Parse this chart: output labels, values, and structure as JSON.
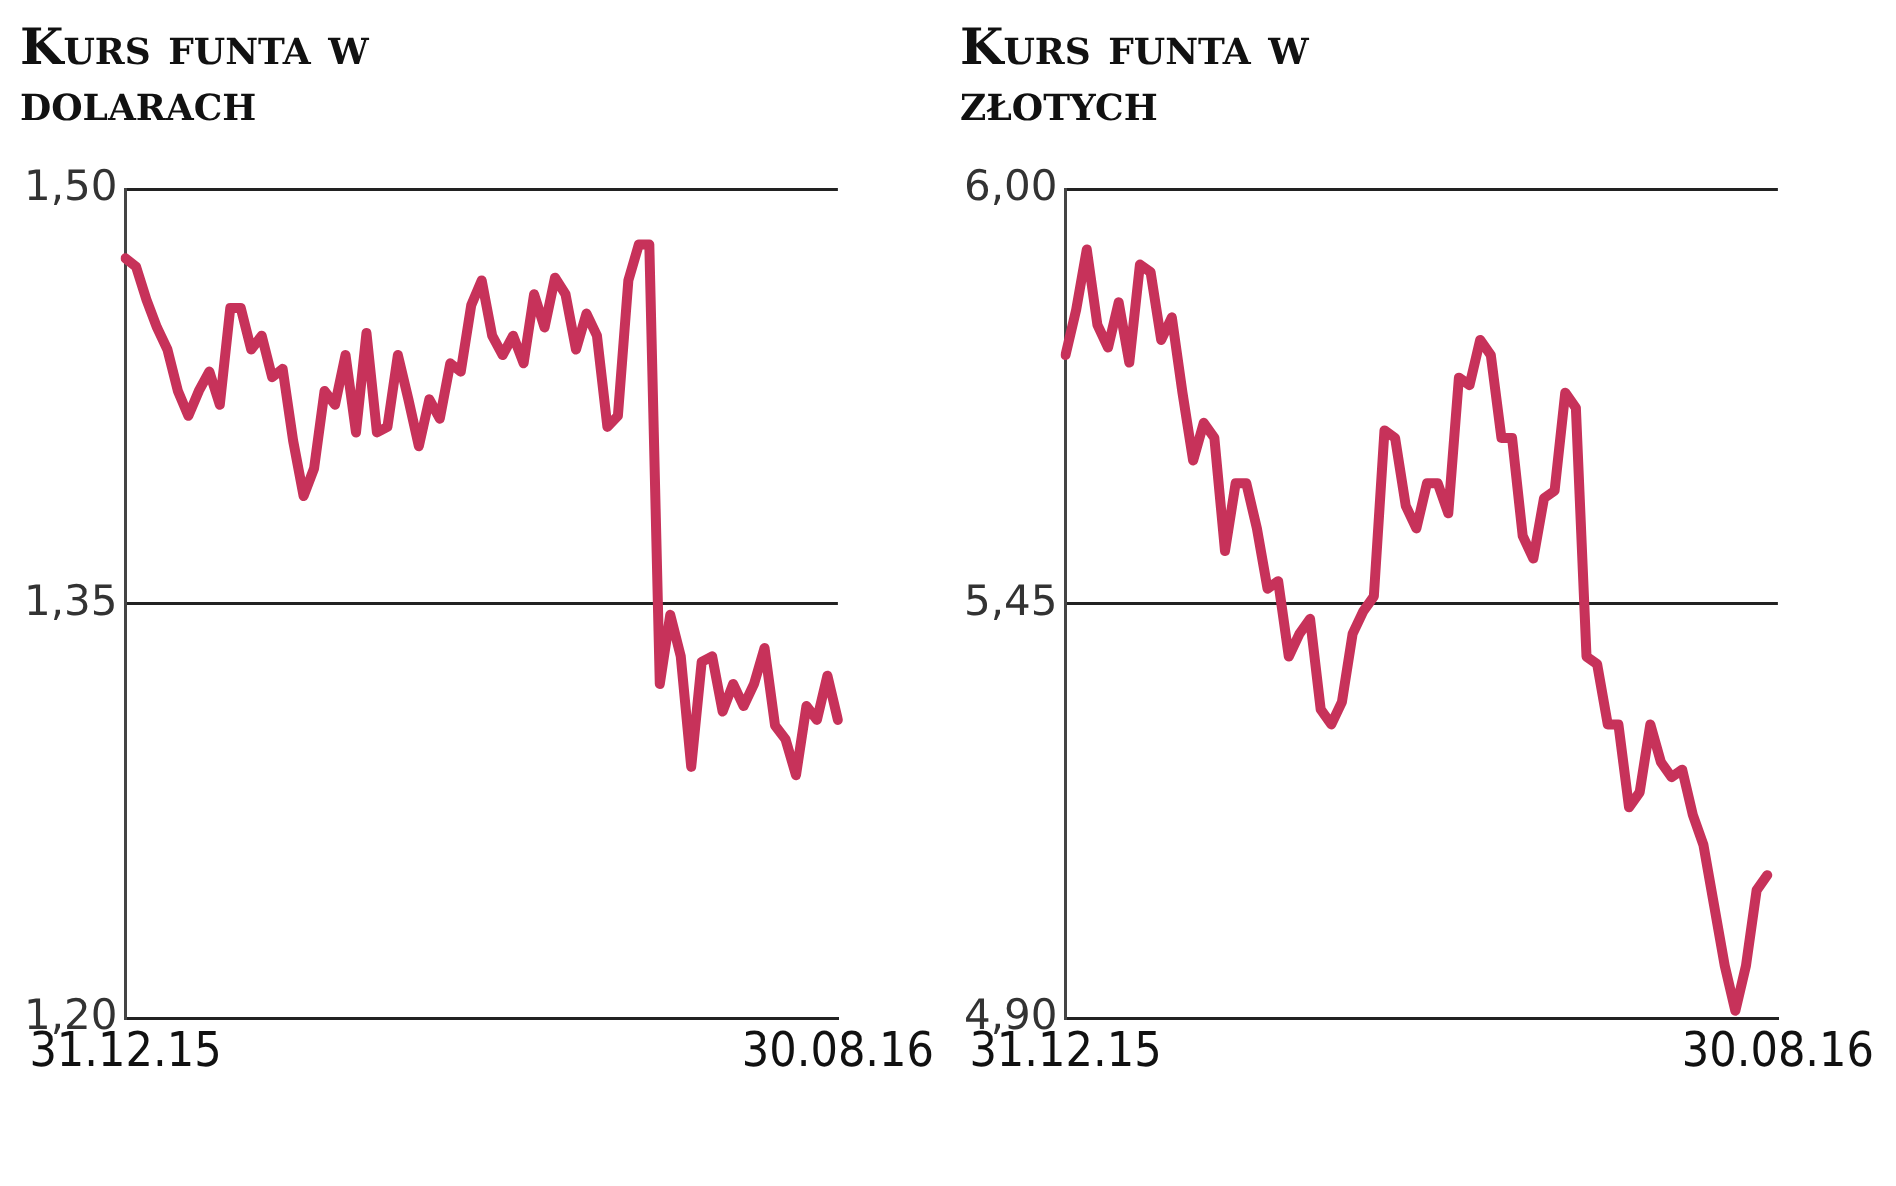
{
  "chart_data": [
    {
      "type": "line",
      "title": "Kurs funta w dolarach",
      "ylim": [
        1.2,
        1.5
      ],
      "yticks": [
        {
          "value": 1.2,
          "label": "1,20"
        },
        {
          "value": 1.35,
          "label": "1,35"
        },
        {
          "value": 1.5,
          "label": "1,50"
        }
      ],
      "grid": "y",
      "categories": [
        "31.12.15",
        null,
        null,
        null,
        null,
        null,
        null,
        null,
        null,
        null,
        null,
        null,
        null,
        null,
        null,
        null,
        null,
        null,
        null,
        null,
        null,
        null,
        null,
        null,
        null,
        null,
        null,
        null,
        null,
        null,
        null,
        null,
        null,
        null,
        null,
        null,
        null,
        null,
        null,
        null,
        null,
        null,
        null,
        null,
        null,
        null,
        null,
        null,
        null,
        null,
        null,
        null,
        null,
        null,
        null,
        null,
        null,
        null,
        null,
        null,
        null,
        null,
        null,
        null,
        null,
        null,
        null,
        null,
        "30.08.16"
      ],
      "series": [
        {
          "color": "#c7325a",
          "values": [
            1.475,
            1.472,
            1.46,
            1.45,
            1.442,
            1.427,
            1.418,
            1.427,
            1.434,
            1.422,
            1.457,
            1.457,
            1.442,
            1.447,
            1.432,
            1.435,
            1.409,
            1.389,
            1.399,
            1.427,
            1.422,
            1.44,
            1.412,
            1.448,
            1.412,
            1.414,
            1.44,
            1.424,
            1.407,
            1.424,
            1.417,
            1.437,
            1.434,
            1.458,
            1.467,
            1.447,
            1.44,
            1.447,
            1.437,
            1.462,
            1.45,
            1.468,
            1.462,
            1.442,
            1.455,
            1.447,
            1.414,
            1.418,
            1.467,
            1.48,
            1.48,
            1.321,
            1.346,
            1.331,
            1.291,
            1.329,
            1.331,
            1.311,
            1.321,
            1.313,
            1.321,
            1.334,
            1.306,
            1.301,
            1.288,
            1.313,
            1.308,
            1.324,
            1.308
          ]
        }
      ]
    },
    {
      "type": "line",
      "title": "Kurs funta w złotych",
      "ylim": [
        4.9,
        6.0
      ],
      "yticks": [
        {
          "value": 4.9,
          "label": "4,90"
        },
        {
          "value": 5.45,
          "label": "5,45"
        },
        {
          "value": 6.0,
          "label": "6,00"
        }
      ],
      "grid": "y",
      "categories": [
        "31.12.15",
        null,
        null,
        null,
        null,
        null,
        null,
        null,
        null,
        null,
        null,
        null,
        null,
        null,
        null,
        null,
        null,
        null,
        null,
        null,
        null,
        null,
        null,
        null,
        null,
        null,
        null,
        null,
        null,
        null,
        null,
        null,
        null,
        null,
        null,
        null,
        null,
        null,
        null,
        null,
        null,
        null,
        null,
        null,
        null,
        null,
        null,
        null,
        null,
        null,
        null,
        null,
        null,
        null,
        null,
        null,
        null,
        null,
        null,
        null,
        null,
        null,
        null,
        null,
        null,
        null,
        null,
        "30.08.16"
      ],
      "series": [
        {
          "color": "#c7325a",
          "values": [
            5.78,
            5.84,
            5.92,
            5.82,
            5.79,
            5.85,
            5.77,
            5.9,
            5.89,
            5.8,
            5.83,
            5.73,
            5.64,
            5.69,
            5.67,
            5.52,
            5.61,
            5.61,
            5.55,
            5.47,
            5.48,
            5.38,
            5.41,
            5.43,
            5.31,
            5.29,
            5.32,
            5.41,
            5.44,
            5.46,
            5.68,
            5.67,
            5.58,
            5.55,
            5.61,
            5.61,
            5.57,
            5.75,
            5.74,
            5.8,
            5.78,
            5.67,
            5.67,
            5.54,
            5.51,
            5.59,
            5.6,
            5.73,
            5.71,
            5.38,
            5.37,
            5.29,
            5.29,
            5.18,
            5.2,
            5.29,
            5.24,
            5.22,
            5.23,
            5.17,
            5.13,
            5.05,
            4.97,
            4.91,
            4.97,
            5.07,
            5.09,
            null
          ]
        }
      ]
    }
  ]
}
